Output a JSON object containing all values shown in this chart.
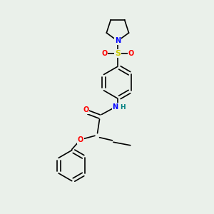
{
  "background_color": "#eaf0ea",
  "line_color": "#000000",
  "atom_colors": {
    "N": "#0000ff",
    "O": "#ff0000",
    "S": "#cccc00",
    "H": "#008080",
    "C": "#000000"
  },
  "figsize": [
    3.0,
    3.0
  ],
  "dpi": 100,
  "lw": 1.2
}
